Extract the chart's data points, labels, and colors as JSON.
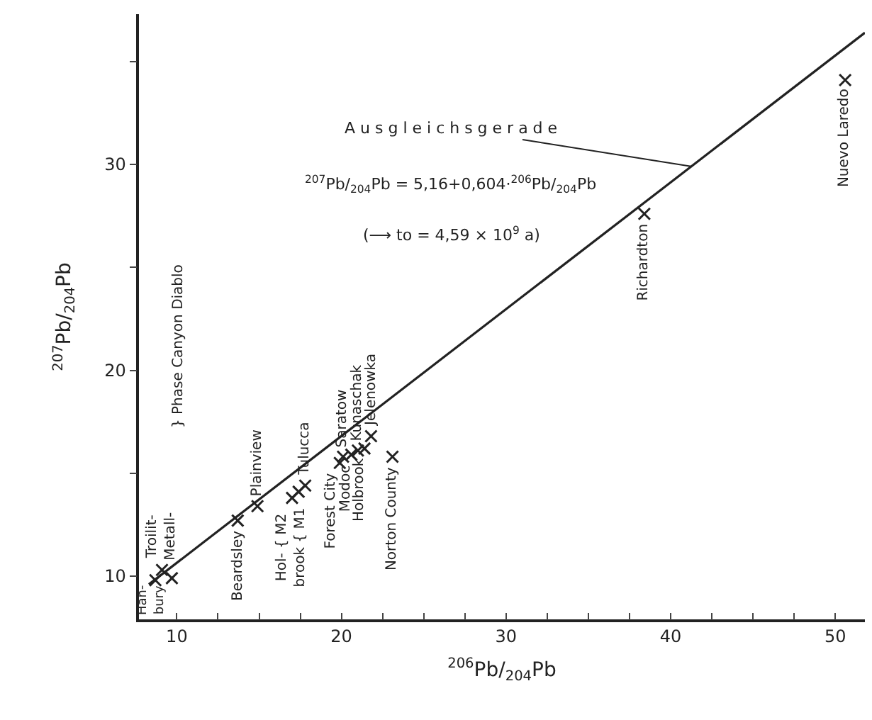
{
  "chart_data": {
    "type": "scatter",
    "xlabel": "$^{206}$Pb/$_{204}$Pb",
    "ylabel": "$^{207}$Pb/$_{204}$Pb",
    "xlim": [
      7.7,
      51.8
    ],
    "ylim": [
      7.9,
      37.3
    ],
    "xticks": [
      10,
      {
        "value": 12.5,
        "label": null
      },
      {
        "value": 15,
        "label": null
      },
      {
        "value": 17.5,
        "label": null
      },
      20,
      {
        "value": 22.5,
        "label": null
      },
      {
        "value": 25,
        "label": null
      },
      {
        "value": 27.5,
        "label": null
      },
      30,
      {
        "value": 32.5,
        "label": null
      },
      {
        "value": 35,
        "label": null
      },
      {
        "value": 37.5,
        "label": null
      },
      40,
      {
        "value": 42.5,
        "label": null
      },
      {
        "value": 45,
        "label": null
      },
      {
        "value": 47.5,
        "label": null
      },
      50
    ],
    "yticks": [
      10,
      {
        "value": 15,
        "label": null
      },
      20,
      {
        "value": 25,
        "label": null
      },
      30,
      {
        "value": 35,
        "label": null
      }
    ],
    "marker": "cross",
    "series": [
      {
        "color": "#222222",
        "x": [
          8.7,
          9.1,
          9.7,
          13.7,
          14.9,
          17.0,
          17.4,
          17.8,
          19.9,
          20.1,
          20.6,
          21.0,
          21.4,
          21.8,
          23.1,
          38.4,
          50.6
        ],
        "values": [
          9.8,
          10.3,
          9.9,
          12.7,
          13.4,
          13.8,
          14.1,
          14.4,
          15.5,
          15.8,
          15.9,
          16.1,
          16.2,
          16.8,
          15.8,
          27.6,
          34.1
        ]
      },
      {
        "type": "line",
        "color": "#222222",
        "marker": "none",
        "x": [
          8.3,
          51.8
        ],
        "values": [
          9.6,
          36.4
        ]
      }
    ],
    "annotations": [
      {
        "text": "A u s g l e i c h s g e r a d e",
        "x": 41.3,
        "y": 29.9
      },
      "$^{207}$Pb/$_{204}$Pb = 5,16+0,604·$^{206}$Pb/$_{204}$Pb",
      "(⟶ to = 4,59 × 10$^{9}$ a)",
      "} Phase Canyon Diablo",
      {
        "text": "Han-\nbury",
        "x": 8.7,
        "y": 9.8
      },
      {
        "text": "Troilit-\nMetall-",
        "x": 9.1,
        "y": 10.3
      },
      {
        "text": "Beardsley",
        "x": 13.7,
        "y": 12.7
      },
      {
        "text": "Plainview",
        "x": 14.9,
        "y": 13.4
      },
      {
        "text": "Hol- { M2\nbrook { M1",
        "x": 17.0,
        "y": 13.8
      },
      {
        "text": "Tulucca",
        "x": 17.8,
        "y": 14.4
      },
      {
        "text": "Forest City",
        "x": 19.9,
        "y": 15.5
      },
      {
        "text": "Saratow",
        "x": 20.1,
        "y": 15.8
      },
      {
        "text": "Modoc",
        "x": 20.6,
        "y": 15.9
      },
      {
        "text": "Kunaschak",
        "x": 21.0,
        "y": 16.1
      },
      {
        "text": "Holbrook",
        "x": 21.4,
        "y": 16.2
      },
      {
        "text": "Jelenowka",
        "x": 21.8,
        "y": 16.8
      },
      {
        "text": "Norton County",
        "x": 23.1,
        "y": 15.8
      },
      {
        "text": "Richardton",
        "x": 38.4,
        "y": 27.6
      },
      {
        "text": "Nuevo Laredo",
        "x": 50.6,
        "y": 34.1
      }
    ]
  }
}
